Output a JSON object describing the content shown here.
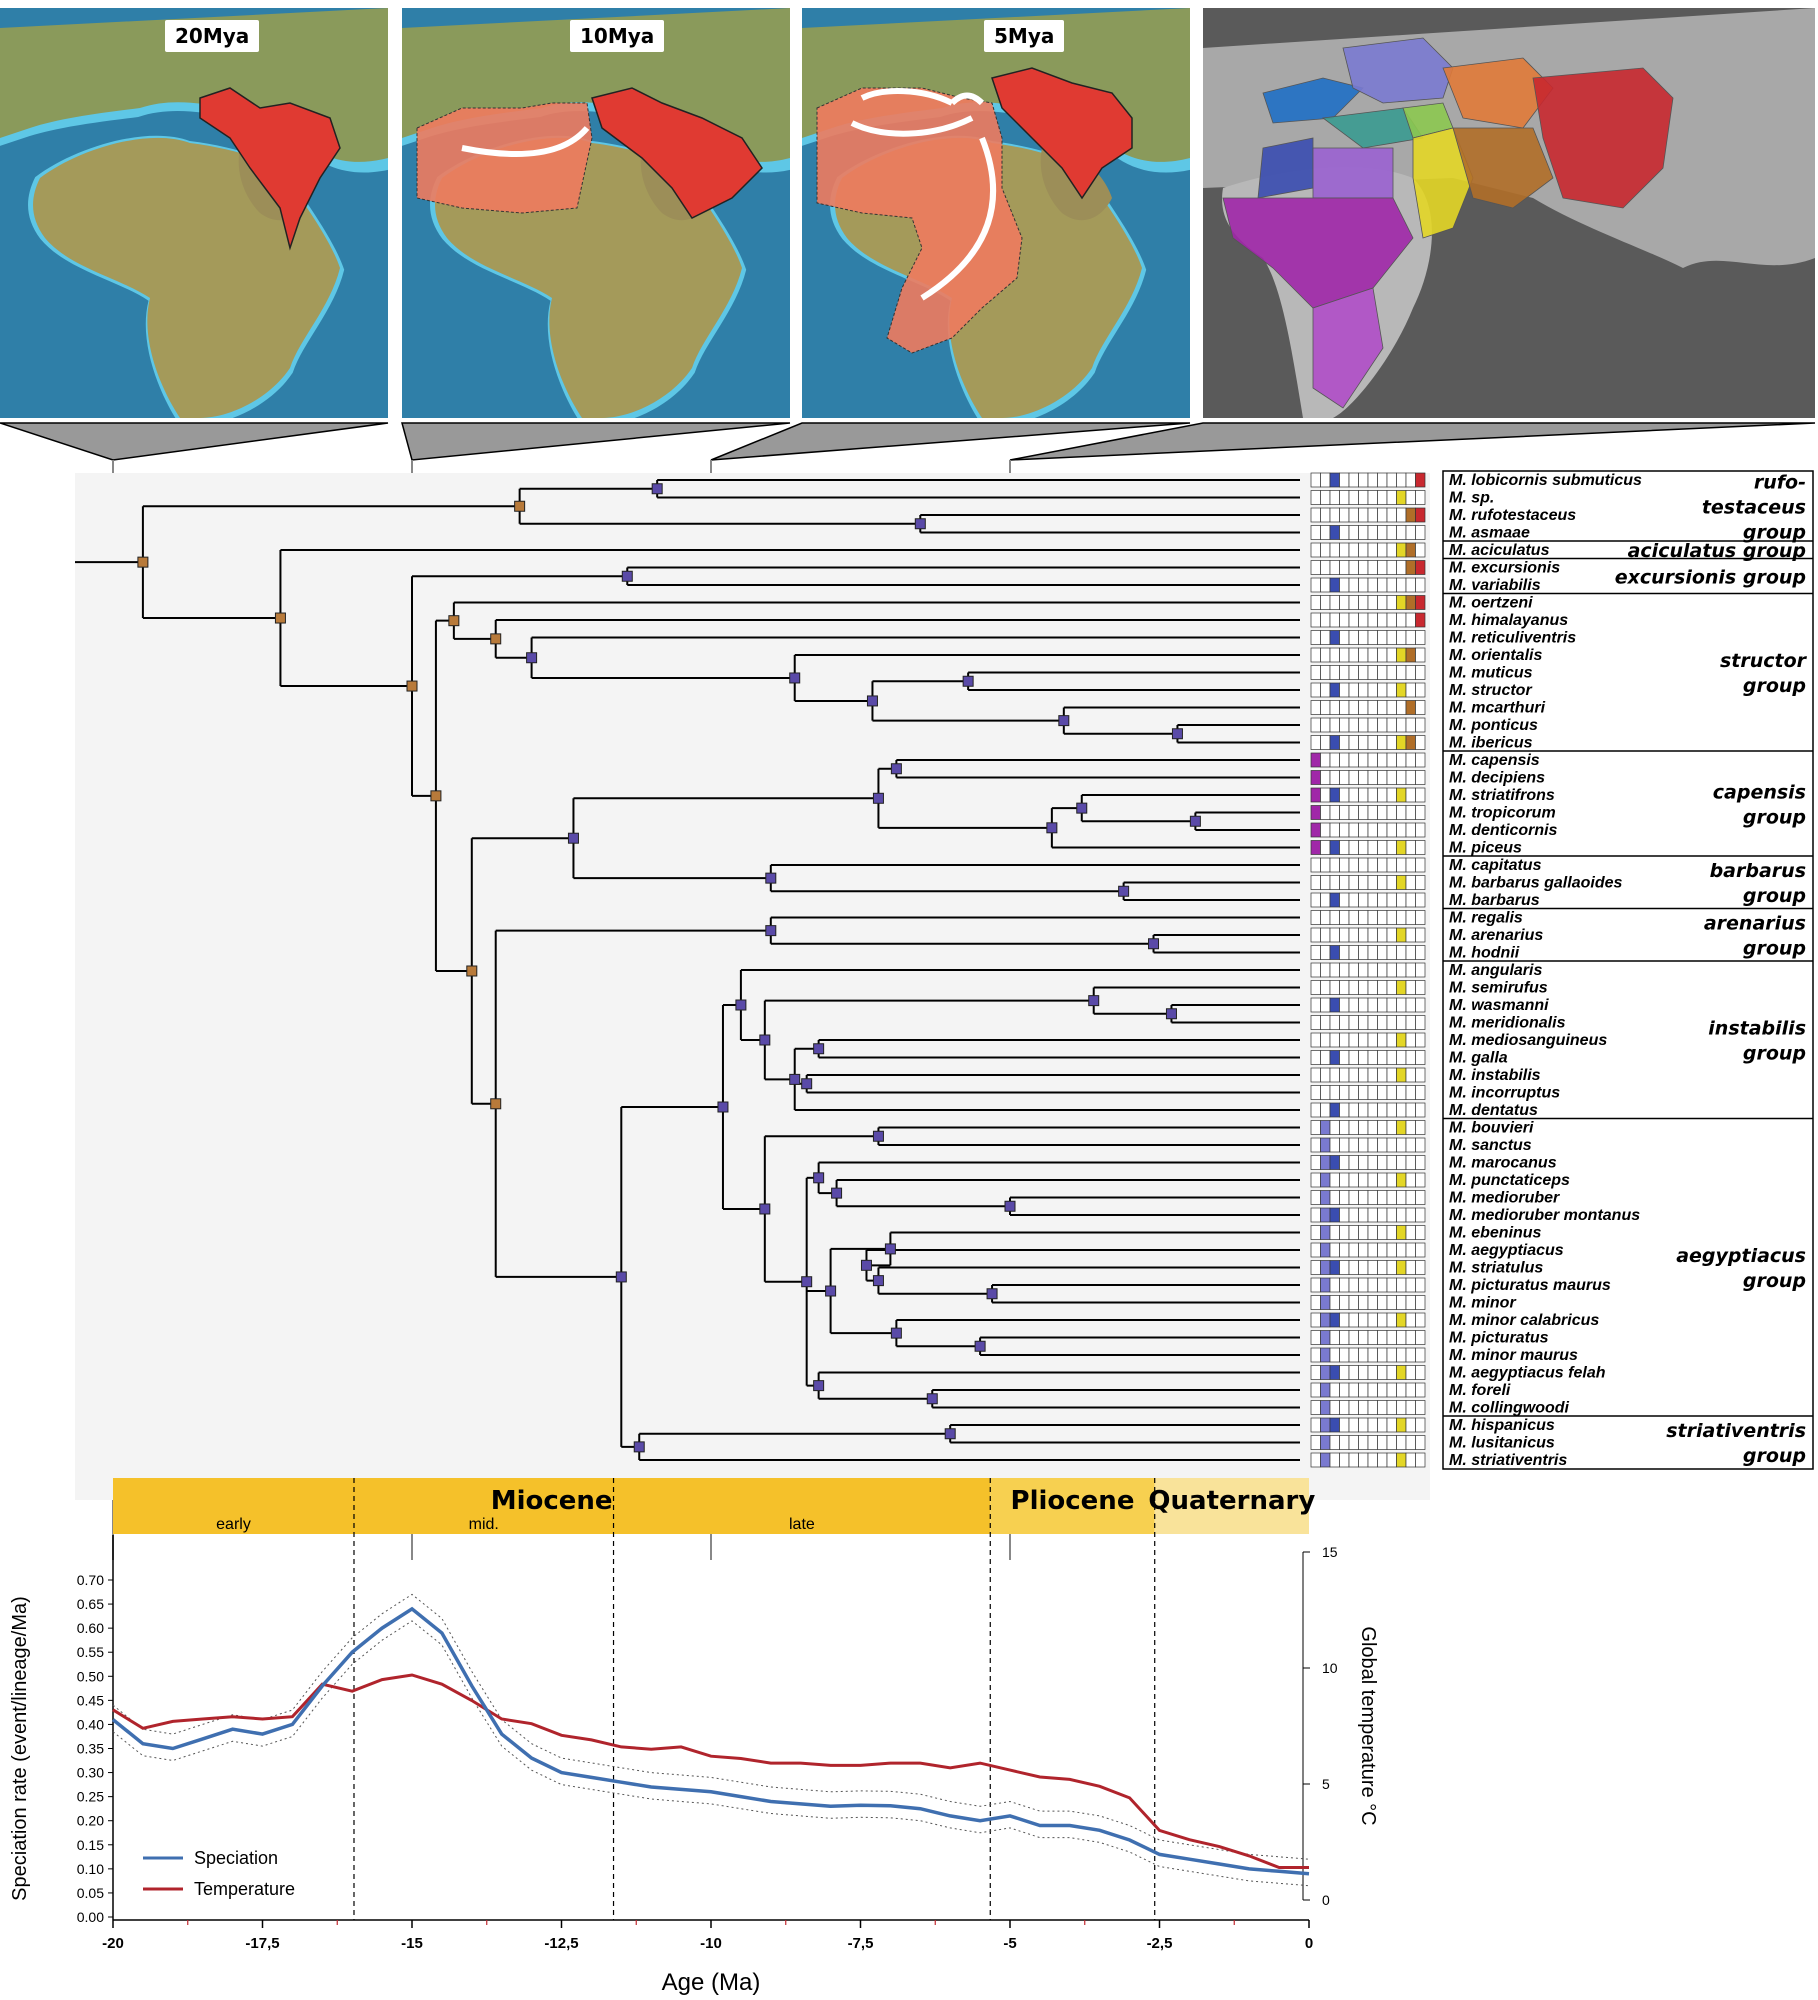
{
  "maps": [
    {
      "label": "20Mya"
    },
    {
      "label": "10Mya"
    },
    {
      "label": "5Mya"
    },
    {
      "label": ""
    }
  ],
  "colors": {
    "range_red": "#e03a32",
    "range_pale": "#ee7b5e",
    "ocean": "#2f7fa8",
    "shelf": "#5ec7e6",
    "land": "#8a9a5b",
    "node_orange": "#b87a3a",
    "node_purple": "#5a4aa8",
    "speciation": "#3f6fb0",
    "temperature": "#b0242c",
    "epoch_dark": "#f5c12a",
    "epoch_light": "#f9e39a"
  },
  "region_colors": [
    "#3a4db0",
    "#1f6fc4",
    "#7a7ad0",
    "#3a9a90",
    "#9a62d0",
    "#8cc850",
    "#e07a38",
    "#c8282f",
    "#e3d626",
    "#b06e28",
    "#a027a8",
    "#b04ec8"
  ],
  "taxa": [
    "M. lobicornis submuticus",
    "M. sp.",
    "M. rufotestaceus",
    "M. asmaae",
    "M. aciculatus",
    "M. excursionis",
    "M. variabilis",
    "M. oertzeni",
    "M. himalayanus",
    "M. reticuliventris",
    "M. orientalis",
    "M. muticus",
    "M. structor",
    "M. mcarthuri",
    "M. ponticus",
    "M. ibericus",
    "M. capensis",
    "M. decipiens",
    "M. striatifrons",
    "M. tropicorum",
    "M. denticornis",
    "M. piceus",
    "M. capitatus",
    "M. barbarus gallaoides",
    "M. barbarus",
    "M. regalis",
    "M. arenarius",
    "M. hodnii",
    "M. angularis",
    "M. semirufus",
    "M. wasmanni",
    "M. meridionalis",
    "M. mediosanguineus",
    "M. galla",
    "M. instabilis",
    "M. incorruptus",
    "M. dentatus",
    "M. bouvieri",
    "M. sanctus",
    "M. marocanus",
    "M. punctaticeps",
    "M. medioruber",
    "M. medioruber montanus",
    "M. ebeninus",
    "M. aegyptiacus",
    "M. striatulus",
    "M. picturatus maurus",
    "M. minor",
    "M. minor calabricus",
    "M. picturatus",
    "M. minor maurus",
    "M. aegyptiacus felah",
    "M. foreli",
    "M. collingwoodi",
    "M. hispanicus",
    "M. lusitanicus",
    "M. striativentris"
  ],
  "groups": [
    {
      "lines": [
        "rufo-",
        "testaceus",
        "group"
      ],
      "from": 0,
      "to": 3
    },
    {
      "lines": [
        "aciculatus group"
      ],
      "from": 4,
      "to": 4
    },
    {
      "lines": [
        "excursionis group"
      ],
      "from": 5,
      "to": 6
    },
    {
      "lines": [
        "structor",
        "group"
      ],
      "from": 7,
      "to": 15
    },
    {
      "lines": [
        "capensis",
        "group"
      ],
      "from": 16,
      "to": 21
    },
    {
      "lines": [
        "barbarus",
        "group"
      ],
      "from": 22,
      "to": 24
    },
    {
      "lines": [
        "arenarius",
        "group"
      ],
      "from": 25,
      "to": 27
    },
    {
      "lines": [
        "instabilis",
        "group"
      ],
      "from": 28,
      "to": 36
    },
    {
      "lines": [
        "aegyptiacus",
        "group"
      ],
      "from": 37,
      "to": 53
    },
    {
      "lines": [
        "striativentris",
        "group"
      ],
      "from": 54,
      "to": 56
    }
  ],
  "timescale": {
    "epochs": [
      {
        "name": "Miocene",
        "start": -20,
        "end": -5.33
      },
      {
        "name": "Pliocene",
        "start": -5.33,
        "end": -2.58
      },
      {
        "name": "Quaternary",
        "start": -2.58,
        "end": 0
      }
    ],
    "subepochs": [
      {
        "name": "early",
        "start": -20,
        "end": -15.97
      },
      {
        "name": "mid.",
        "start": -15.97,
        "end": -11.63
      },
      {
        "name": "late",
        "start": -11.63,
        "end": -5.33
      }
    ]
  },
  "chart_data": {
    "type": "line",
    "xlabel": "Age (Ma)",
    "ylabel": "Speciation rate (event/lineage/Ma)",
    "y2label": "Global temperature °C",
    "xlim": [
      -20,
      0
    ],
    "ylim": [
      0,
      0.7
    ],
    "y2lim": [
      0,
      15
    ],
    "x_ticks": [
      "-20",
      "-17,5",
      "-15",
      "-12,5",
      "-10",
      "-7,5",
      "-5",
      "-2,5",
      "0"
    ],
    "y_ticks": [
      "0.00",
      "0.05",
      "0.10",
      "0.15",
      "0.20",
      "0.25",
      "0.30",
      "0.35",
      "0.40",
      "0.45",
      "0.50",
      "0.55",
      "0.60",
      "0.65",
      "0.70"
    ],
    "y2_ticks": [
      "0",
      "5",
      "10",
      "15"
    ],
    "legend_position": "bottom-left",
    "series": [
      {
        "name": "Speciation",
        "axis": "left",
        "x": [
          -20,
          -19.5,
          -19,
          -18.5,
          -18,
          -17.5,
          -17,
          -16.5,
          -16,
          -15.5,
          -15,
          -14.5,
          -14,
          -13.5,
          -13,
          -12.5,
          -12,
          -11.5,
          -11,
          -10.5,
          -10,
          -9.5,
          -9,
          -8.5,
          -8,
          -7.5,
          -7,
          -6.5,
          -6,
          -5.5,
          -5,
          -4.5,
          -4,
          -3.5,
          -3,
          -2.5,
          -2,
          -1.5,
          -1,
          -0.5,
          0
        ],
        "values": [
          0.41,
          0.36,
          0.35,
          0.37,
          0.39,
          0.38,
          0.4,
          0.48,
          0.55,
          0.6,
          0.64,
          0.59,
          0.48,
          0.38,
          0.33,
          0.3,
          0.29,
          0.28,
          0.27,
          0.265,
          0.26,
          0.25,
          0.24,
          0.235,
          0.23,
          0.232,
          0.231,
          0.225,
          0.21,
          0.2,
          0.21,
          0.19,
          0.19,
          0.18,
          0.16,
          0.13,
          0.12,
          0.11,
          0.1,
          0.095,
          0.09
        ]
      },
      {
        "name": "Temperature",
        "axis": "right",
        "x": [
          -20,
          -19.5,
          -19,
          -18.5,
          -18,
          -17.5,
          -17,
          -16.5,
          -16,
          -15.5,
          -15,
          -14.5,
          -14,
          -13.5,
          -13,
          -12.5,
          -12,
          -11.5,
          -11,
          -10.5,
          -10,
          -9.5,
          -9,
          -8.5,
          -8,
          -7.5,
          -7,
          -6.5,
          -6,
          -5.5,
          -5,
          -4.5,
          -4,
          -3.5,
          -3,
          -2.5,
          -2,
          -1.5,
          -1,
          -0.5,
          0
        ],
        "values": [
          8.2,
          7.4,
          7.7,
          7.8,
          7.9,
          7.8,
          7.9,
          9.3,
          9.0,
          9.5,
          9.7,
          9.3,
          8.6,
          7.8,
          7.6,
          7.1,
          6.9,
          6.6,
          6.5,
          6.6,
          6.2,
          6.1,
          5.9,
          5.9,
          5.8,
          5.8,
          5.9,
          5.9,
          5.7,
          5.9,
          5.6,
          5.3,
          5.2,
          4.9,
          4.4,
          3.0,
          2.6,
          2.3,
          1.9,
          1.4,
          1.4
        ]
      }
    ]
  }
}
